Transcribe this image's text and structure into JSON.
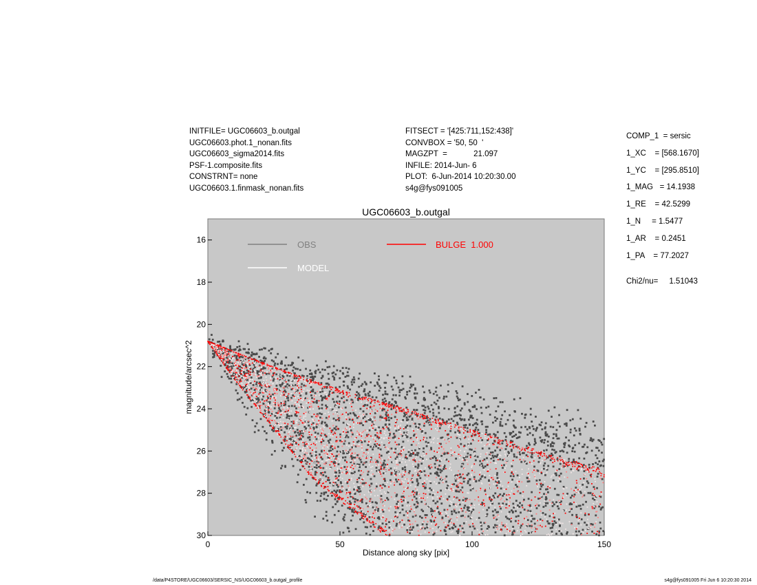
{
  "header_left": [
    "INITFILE= UGC06603_b.outgal",
    "UGC06603.phot.1_nonan.fits",
    "UGC06603_sigma2014.fits",
    "PSF-1.composite.fits",
    "CONSTRNT= none",
    "UGC06603.1.finmask_nonan.fits"
  ],
  "header_mid": [
    "FITSECT = '[425:711,152:438]'",
    "CONVBOX = '50, 50  '",
    "MAGZPT  =            21.097",
    "INFILE: 2014-Jun- 6",
    "PLOT:  6-Jun-2014 10:20:30.00",
    "s4g@fys091005"
  ],
  "params": [
    "COMP_1  = sersic",
    "1_XC    = [568.1670]",
    "1_YC    = [295.8510]",
    "1_MAG   = 14.1938",
    "1_RE    = 42.5299",
    "1_N     = 1.5477",
    "1_AR    = 0.2451",
    "1_PA    = 77.2027"
  ],
  "chi2": "Chi2/nu=     1.51043",
  "footer_left": "/data/P4STORE/UGC06603/SERSIC_NS/UGC06603_b.outgal_profile",
  "footer_right": "s4g@fys091005  Fri Jun  6 10:20:30 2014",
  "chart_data": {
    "type": "scatter",
    "title": "UGC06603_b.outgal",
    "xlabel": "Distance along sky [pix]",
    "ylabel": "magnitude/arcsec^2",
    "xlim": [
      0,
      150
    ],
    "ylim": [
      30,
      15
    ],
    "y_reversed": true,
    "xticks": [
      "0",
      "50",
      "100",
      "150"
    ],
    "yticks": [
      "16",
      "18",
      "20",
      "22",
      "24",
      "26",
      "28",
      "30"
    ],
    "background": "#c8c8c8",
    "legend": [
      {
        "name": "OBS",
        "color": "#808080"
      },
      {
        "name": "MODEL",
        "color": "#ffffff"
      },
      {
        "name": "BULGE  1.000",
        "color": "#ff0000"
      }
    ],
    "model_envelope": {
      "upper": [
        [
          0,
          20.8
        ],
        [
          25,
          22.0
        ],
        [
          50,
          23.1
        ],
        [
          75,
          24.0
        ],
        [
          100,
          25.0
        ],
        [
          150,
          26.9
        ]
      ],
      "lower": [
        [
          0,
          20.8
        ],
        [
          10,
          22.6
        ],
        [
          20,
          24.2
        ],
        [
          30,
          25.8
        ],
        [
          40,
          27.4
        ],
        [
          67,
          30.0
        ]
      ]
    },
    "obs_color": "#4a4a4a",
    "model_color": "#ff0000"
  }
}
